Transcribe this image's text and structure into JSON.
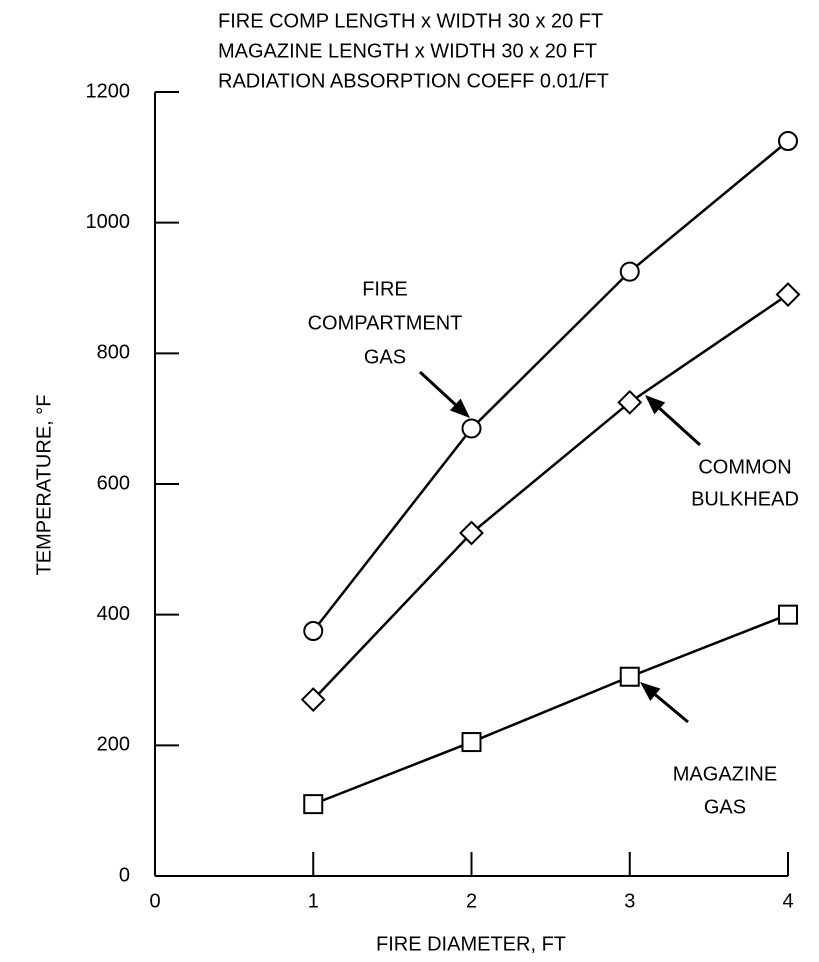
{
  "chart_data": {
    "type": "line",
    "notes": [
      "FIRE COMP LENGTH x WIDTH 30 x 20 FT",
      "MAGAZINE LENGTH x WIDTH 30 x 20 FT",
      "RADIATION ABSORPTION COEFF 0.01/FT"
    ],
    "x_label": "FIRE DIAMETER, FT",
    "y_label": "TEMPERATURE, °F",
    "x": [
      1,
      2,
      3,
      4
    ],
    "xlim": [
      0,
      4
    ],
    "xticks": [
      0,
      1,
      2,
      3,
      4
    ],
    "ylim": [
      0,
      1200
    ],
    "yticks": [
      0,
      200,
      400,
      600,
      800,
      1000,
      1200
    ],
    "series": [
      {
        "name": [
          "FIRE",
          "COMPARTMENT",
          "GAS"
        ],
        "color": "#000000",
        "marker": "circle",
        "values": [
          375,
          685,
          925,
          1125
        ]
      },
      {
        "name": [
          "COMMON",
          "BULKHEAD"
        ],
        "color": "#000000",
        "marker": "diamond",
        "values": [
          270,
          525,
          725,
          890
        ]
      },
      {
        "name": [
          "MAGAZINE",
          "GAS"
        ],
        "color": "#000000",
        "marker": "square",
        "values": [
          110,
          205,
          305,
          400
        ]
      }
    ]
  }
}
